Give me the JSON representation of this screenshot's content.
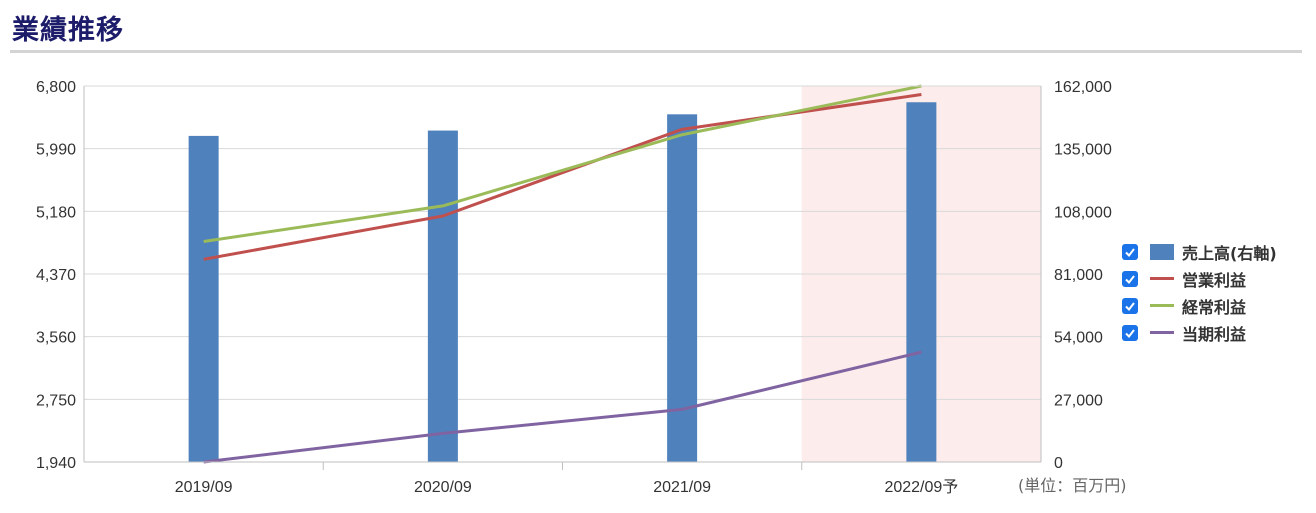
{
  "page": {
    "title": "業績推移",
    "unit_note": "(単位：百万円)"
  },
  "chart_data": {
    "type": "bar",
    "categories": [
      "2019/09",
      "2020/09",
      "2021/09",
      "2022/09予"
    ],
    "forecast_category": "2022/09予",
    "left_axis": {
      "ticks": [
        "6,800",
        "5,990",
        "5,180",
        "4,370",
        "3,560",
        "2,750",
        "1,940"
      ],
      "ylim": [
        1940,
        6800
      ]
    },
    "right_axis": {
      "ticks": [
        "162,000",
        "135,000",
        "108,000",
        "81,000",
        "54,000",
        "27,000",
        "0"
      ],
      "ylim": [
        0,
        162000
      ]
    },
    "grid": true,
    "legend_position": "right",
    "series": [
      {
        "name": "売上高(右軸)",
        "type": "bar",
        "axis": "right",
        "color": "#4f81bd",
        "values": [
          140500,
          142800,
          149800,
          155000
        ]
      },
      {
        "name": "営業利益",
        "type": "line",
        "axis": "left",
        "color": "#c0504d",
        "values": [
          4560,
          5120,
          6240,
          6690
        ]
      },
      {
        "name": "経常利益",
        "type": "line",
        "axis": "left",
        "color": "#9bbb59",
        "values": [
          4790,
          5250,
          6170,
          6800
        ]
      },
      {
        "name": "当期利益",
        "type": "line",
        "axis": "left",
        "color": "#8064a2",
        "values": [
          1940,
          2310,
          2620,
          3360
        ]
      }
    ],
    "forecast_shade_color": "#fdecec"
  }
}
